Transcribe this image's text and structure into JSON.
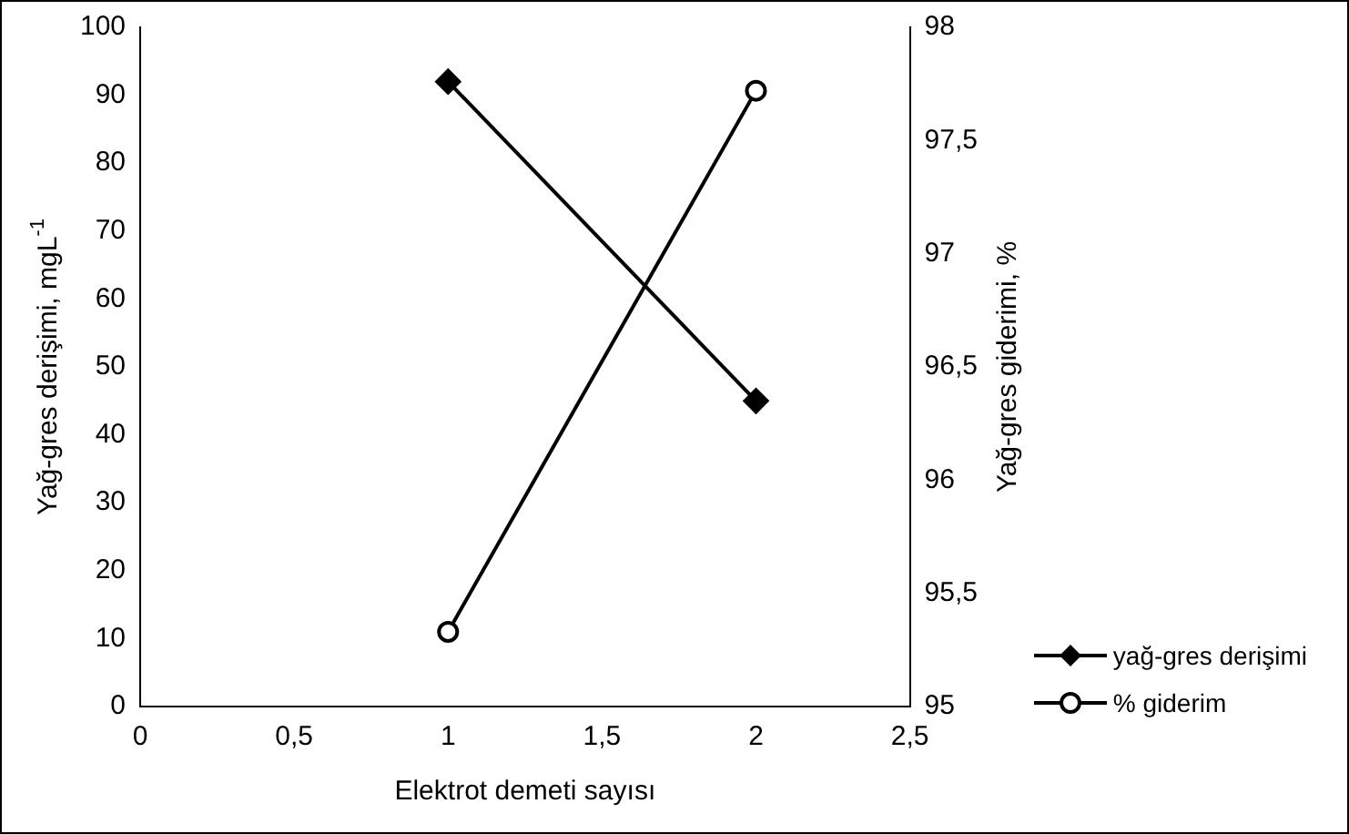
{
  "chart_data": {
    "type": "line",
    "xlabel": "Elektrot demeti sayısı",
    "ylabel": "Yağ-gres derişimi, mgL$^{-1}$",
    "y2label": "Yağ-gres giderimi, %",
    "x": [
      1,
      2
    ],
    "series": [
      {
        "name": "yağ-gres derişimi",
        "color": "#000000",
        "values": [
          92,
          45
        ],
        "marker": "diamond"
      },
      {
        "name": "% giderim",
        "color": "#000000",
        "values": [
          95.33,
          97.72
        ],
        "axis": "y2",
        "marker": "circle"
      }
    ],
    "xlim": [
      0,
      2.5
    ],
    "xticks": [
      0,
      {
        "value": 0.5,
        "label": "0,5"
      },
      1,
      {
        "value": 1.5,
        "label": "1,5"
      },
      2,
      {
        "value": 2.5,
        "label": "2,5"
      }
    ],
    "ylim": [
      0,
      100
    ],
    "yticks": [
      0,
      10,
      20,
      30,
      40,
      50,
      60,
      70,
      80,
      90,
      100
    ],
    "y2lim": [
      95,
      98
    ],
    "y2ticks": [
      95,
      {
        "value": 95.5,
        "label": "95,5"
      },
      96,
      {
        "value": 96.5,
        "label": "96,5"
      },
      97,
      {
        "value": 97.5,
        "label": "97,5"
      },
      98
    ],
    "grid": false,
    "legend": "bottom right",
    "line_style": "solid"
  }
}
